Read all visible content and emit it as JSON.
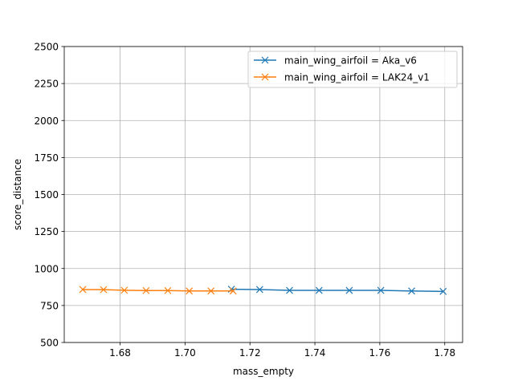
{
  "chart_data": {
    "type": "line",
    "title": "",
    "xlabel": "mass_empty",
    "ylabel": "score_distance",
    "xlim": [
      1.6628,
      1.7855
    ],
    "ylim": [
      500,
      2500
    ],
    "xticks": [
      1.68,
      1.7,
      1.72,
      1.74,
      1.76,
      1.78
    ],
    "xtick_labels": [
      "1.68",
      "1.70",
      "1.72",
      "1.74",
      "1.76",
      "1.78"
    ],
    "yticks": [
      500,
      750,
      1000,
      1250,
      1500,
      1750,
      2000,
      2250,
      2500
    ],
    "ytick_labels": [
      "500",
      "750",
      "1000",
      "1250",
      "1500",
      "1750",
      "2000",
      "2250",
      "2500"
    ],
    "grid": true,
    "legend_position": "top-right",
    "series": [
      {
        "name": "main_wing_airfoil = Aka_v6",
        "color": "#1f77b4",
        "marker": "x",
        "x": [
          1.7143,
          1.723,
          1.7322,
          1.7413,
          1.7506,
          1.7603,
          1.7698,
          1.7795
        ],
        "y": [
          860,
          858,
          852,
          852,
          852,
          852,
          848,
          845
        ]
      },
      {
        "name": "main_wing_airfoil = LAK24_v1",
        "color": "#ff7f0e",
        "marker": "x",
        "x": [
          1.6685,
          1.6749,
          1.6813,
          1.688,
          1.6947,
          1.7013,
          1.708,
          1.7148
        ],
        "y": [
          858,
          857,
          853,
          851,
          851,
          848,
          848,
          848
        ]
      }
    ]
  }
}
